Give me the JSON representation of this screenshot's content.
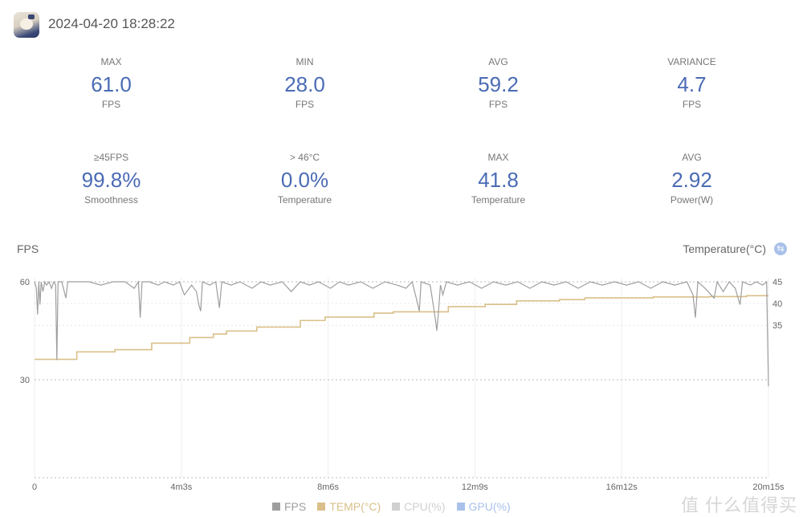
{
  "header": {
    "timestamp": "2024-04-20 18:28:22",
    "avatar_icon": "game-character-avatar"
  },
  "stats": [
    {
      "label": "MAX",
      "value": "61.0",
      "unit": "FPS"
    },
    {
      "label": "MIN",
      "value": "28.0",
      "unit": "FPS"
    },
    {
      "label": "AVG",
      "value": "59.2",
      "unit": "FPS"
    },
    {
      "label": "VARIANCE",
      "value": "4.7",
      "unit": "FPS"
    },
    {
      "label": "≥45FPS",
      "value": "99.8%",
      "unit": "Smoothness"
    },
    {
      "label": "> 46°C",
      "value": "0.0%",
      "unit": "Temperature"
    },
    {
      "label": "MAX",
      "value": "41.8",
      "unit": "Temperature"
    },
    {
      "label": "AVG",
      "value": "2.92",
      "unit": "Power(W)"
    }
  ],
  "colors": {
    "value": "#4a6bb5",
    "fps": "#9e9e9e",
    "temp": "#d9c08a",
    "cpu": "#d0d0d0",
    "gpu": "#a9c1ea"
  },
  "watermark": "值 什么值得买",
  "chart_data": {
    "type": "line",
    "ylabel_left": "FPS",
    "ylabel_right": "Temperature(°C)",
    "ylim_left": [
      0,
      60
    ],
    "ylim_right": [
      0,
      45
    ],
    "yticks_left": [
      "60",
      "30"
    ],
    "yticks_right": [
      "45",
      "40",
      "35"
    ],
    "xlim_seconds": [
      0,
      1215
    ],
    "xticks": [
      {
        "t": 0,
        "label": "0"
      },
      {
        "t": 243,
        "label": "4m3s"
      },
      {
        "t": 486,
        "label": "8m6s"
      },
      {
        "t": 729,
        "label": "12m9s"
      },
      {
        "t": 972,
        "label": "16m12s"
      },
      {
        "t": 1215,
        "label": "20m15s"
      }
    ],
    "grid": true,
    "legend": [
      {
        "name": "FPS",
        "color": "#9e9e9e"
      },
      {
        "name": "TEMP(°C)",
        "color": "#d9c08a"
      },
      {
        "name": "CPU(%)",
        "color": "#d0d0d0"
      },
      {
        "name": "GPU(%)",
        "color": "#a9c1ea"
      }
    ],
    "legend_position": "bottom",
    "series": [
      {
        "name": "FPS",
        "axis": "left",
        "points": [
          [
            0,
            60
          ],
          [
            3,
            58
          ],
          [
            5,
            50
          ],
          [
            7,
            60
          ],
          [
            9,
            53
          ],
          [
            11,
            60
          ],
          [
            14,
            57
          ],
          [
            17,
            60
          ],
          [
            20,
            59
          ],
          [
            24,
            60
          ],
          [
            28,
            58
          ],
          [
            32,
            60
          ],
          [
            35,
            59
          ],
          [
            37,
            36
          ],
          [
            39,
            60
          ],
          [
            45,
            60
          ],
          [
            52,
            55
          ],
          [
            55,
            60
          ],
          [
            70,
            60
          ],
          [
            90,
            60
          ],
          [
            110,
            59
          ],
          [
            130,
            60
          ],
          [
            150,
            60
          ],
          [
            165,
            58
          ],
          [
            172,
            60
          ],
          [
            175,
            49
          ],
          [
            178,
            60
          ],
          [
            190,
            60
          ],
          [
            205,
            59
          ],
          [
            215,
            60
          ],
          [
            230,
            59
          ],
          [
            240,
            60
          ],
          [
            248,
            56
          ],
          [
            260,
            59
          ],
          [
            268,
            57
          ],
          [
            272,
            53
          ],
          [
            275,
            51
          ],
          [
            278,
            60
          ],
          [
            290,
            59
          ],
          [
            300,
            60
          ],
          [
            306,
            52
          ],
          [
            310,
            60
          ],
          [
            325,
            59
          ],
          [
            340,
            60
          ],
          [
            360,
            58
          ],
          [
            375,
            60
          ],
          [
            390,
            59
          ],
          [
            410,
            60
          ],
          [
            425,
            57
          ],
          [
            440,
            60
          ],
          [
            455,
            59
          ],
          [
            470,
            60
          ],
          [
            490,
            58
          ],
          [
            505,
            60
          ],
          [
            520,
            59
          ],
          [
            540,
            60
          ],
          [
            560,
            58
          ],
          [
            580,
            60
          ],
          [
            600,
            59
          ],
          [
            615,
            58
          ],
          [
            625,
            60
          ],
          [
            632,
            55
          ],
          [
            637,
            51
          ],
          [
            640,
            60
          ],
          [
            655,
            59
          ],
          [
            660,
            53
          ],
          [
            664,
            48
          ],
          [
            666,
            45
          ],
          [
            668,
            49
          ],
          [
            672,
            59
          ],
          [
            676,
            56
          ],
          [
            682,
            60
          ],
          [
            700,
            59
          ],
          [
            720,
            60
          ],
          [
            740,
            58
          ],
          [
            760,
            60
          ],
          [
            780,
            59
          ],
          [
            800,
            60
          ],
          [
            820,
            58
          ],
          [
            840,
            60
          ],
          [
            860,
            59
          ],
          [
            880,
            60
          ],
          [
            900,
            58
          ],
          [
            920,
            60
          ],
          [
            940,
            59
          ],
          [
            960,
            60
          ],
          [
            980,
            59
          ],
          [
            1000,
            60
          ],
          [
            1020,
            58
          ],
          [
            1040,
            60
          ],
          [
            1060,
            59
          ],
          [
            1080,
            60
          ],
          [
            1090,
            56
          ],
          [
            1094,
            49
          ],
          [
            1098,
            60
          ],
          [
            1110,
            58
          ],
          [
            1125,
            55
          ],
          [
            1130,
            60
          ],
          [
            1140,
            57
          ],
          [
            1150,
            60
          ],
          [
            1160,
            58
          ],
          [
            1168,
            53
          ],
          [
            1172,
            60
          ],
          [
            1185,
            59
          ],
          [
            1195,
            60
          ],
          [
            1205,
            59
          ],
          [
            1212,
            60
          ],
          [
            1215,
            28
          ]
        ]
      },
      {
        "name": "TEMP(°C)",
        "axis": "right",
        "step": true,
        "points": [
          [
            0,
            27.2
          ],
          [
            70,
            28.9
          ],
          [
            133,
            29.4
          ],
          [
            194,
            30.9
          ],
          [
            257,
            32.2
          ],
          [
            296,
            33.0
          ],
          [
            318,
            33.7
          ],
          [
            368,
            34.6
          ],
          [
            440,
            36.1
          ],
          [
            481,
            36.9
          ],
          [
            562,
            37.8
          ],
          [
            594,
            38.1
          ],
          [
            685,
            39.3
          ],
          [
            746,
            39.8
          ],
          [
            798,
            40.6
          ],
          [
            869,
            40.9
          ],
          [
            911,
            41.3
          ],
          [
            1024,
            41.5
          ],
          [
            1117,
            41.6
          ],
          [
            1179,
            41.8
          ],
          [
            1215,
            41.8
          ]
        ]
      }
    ]
  }
}
